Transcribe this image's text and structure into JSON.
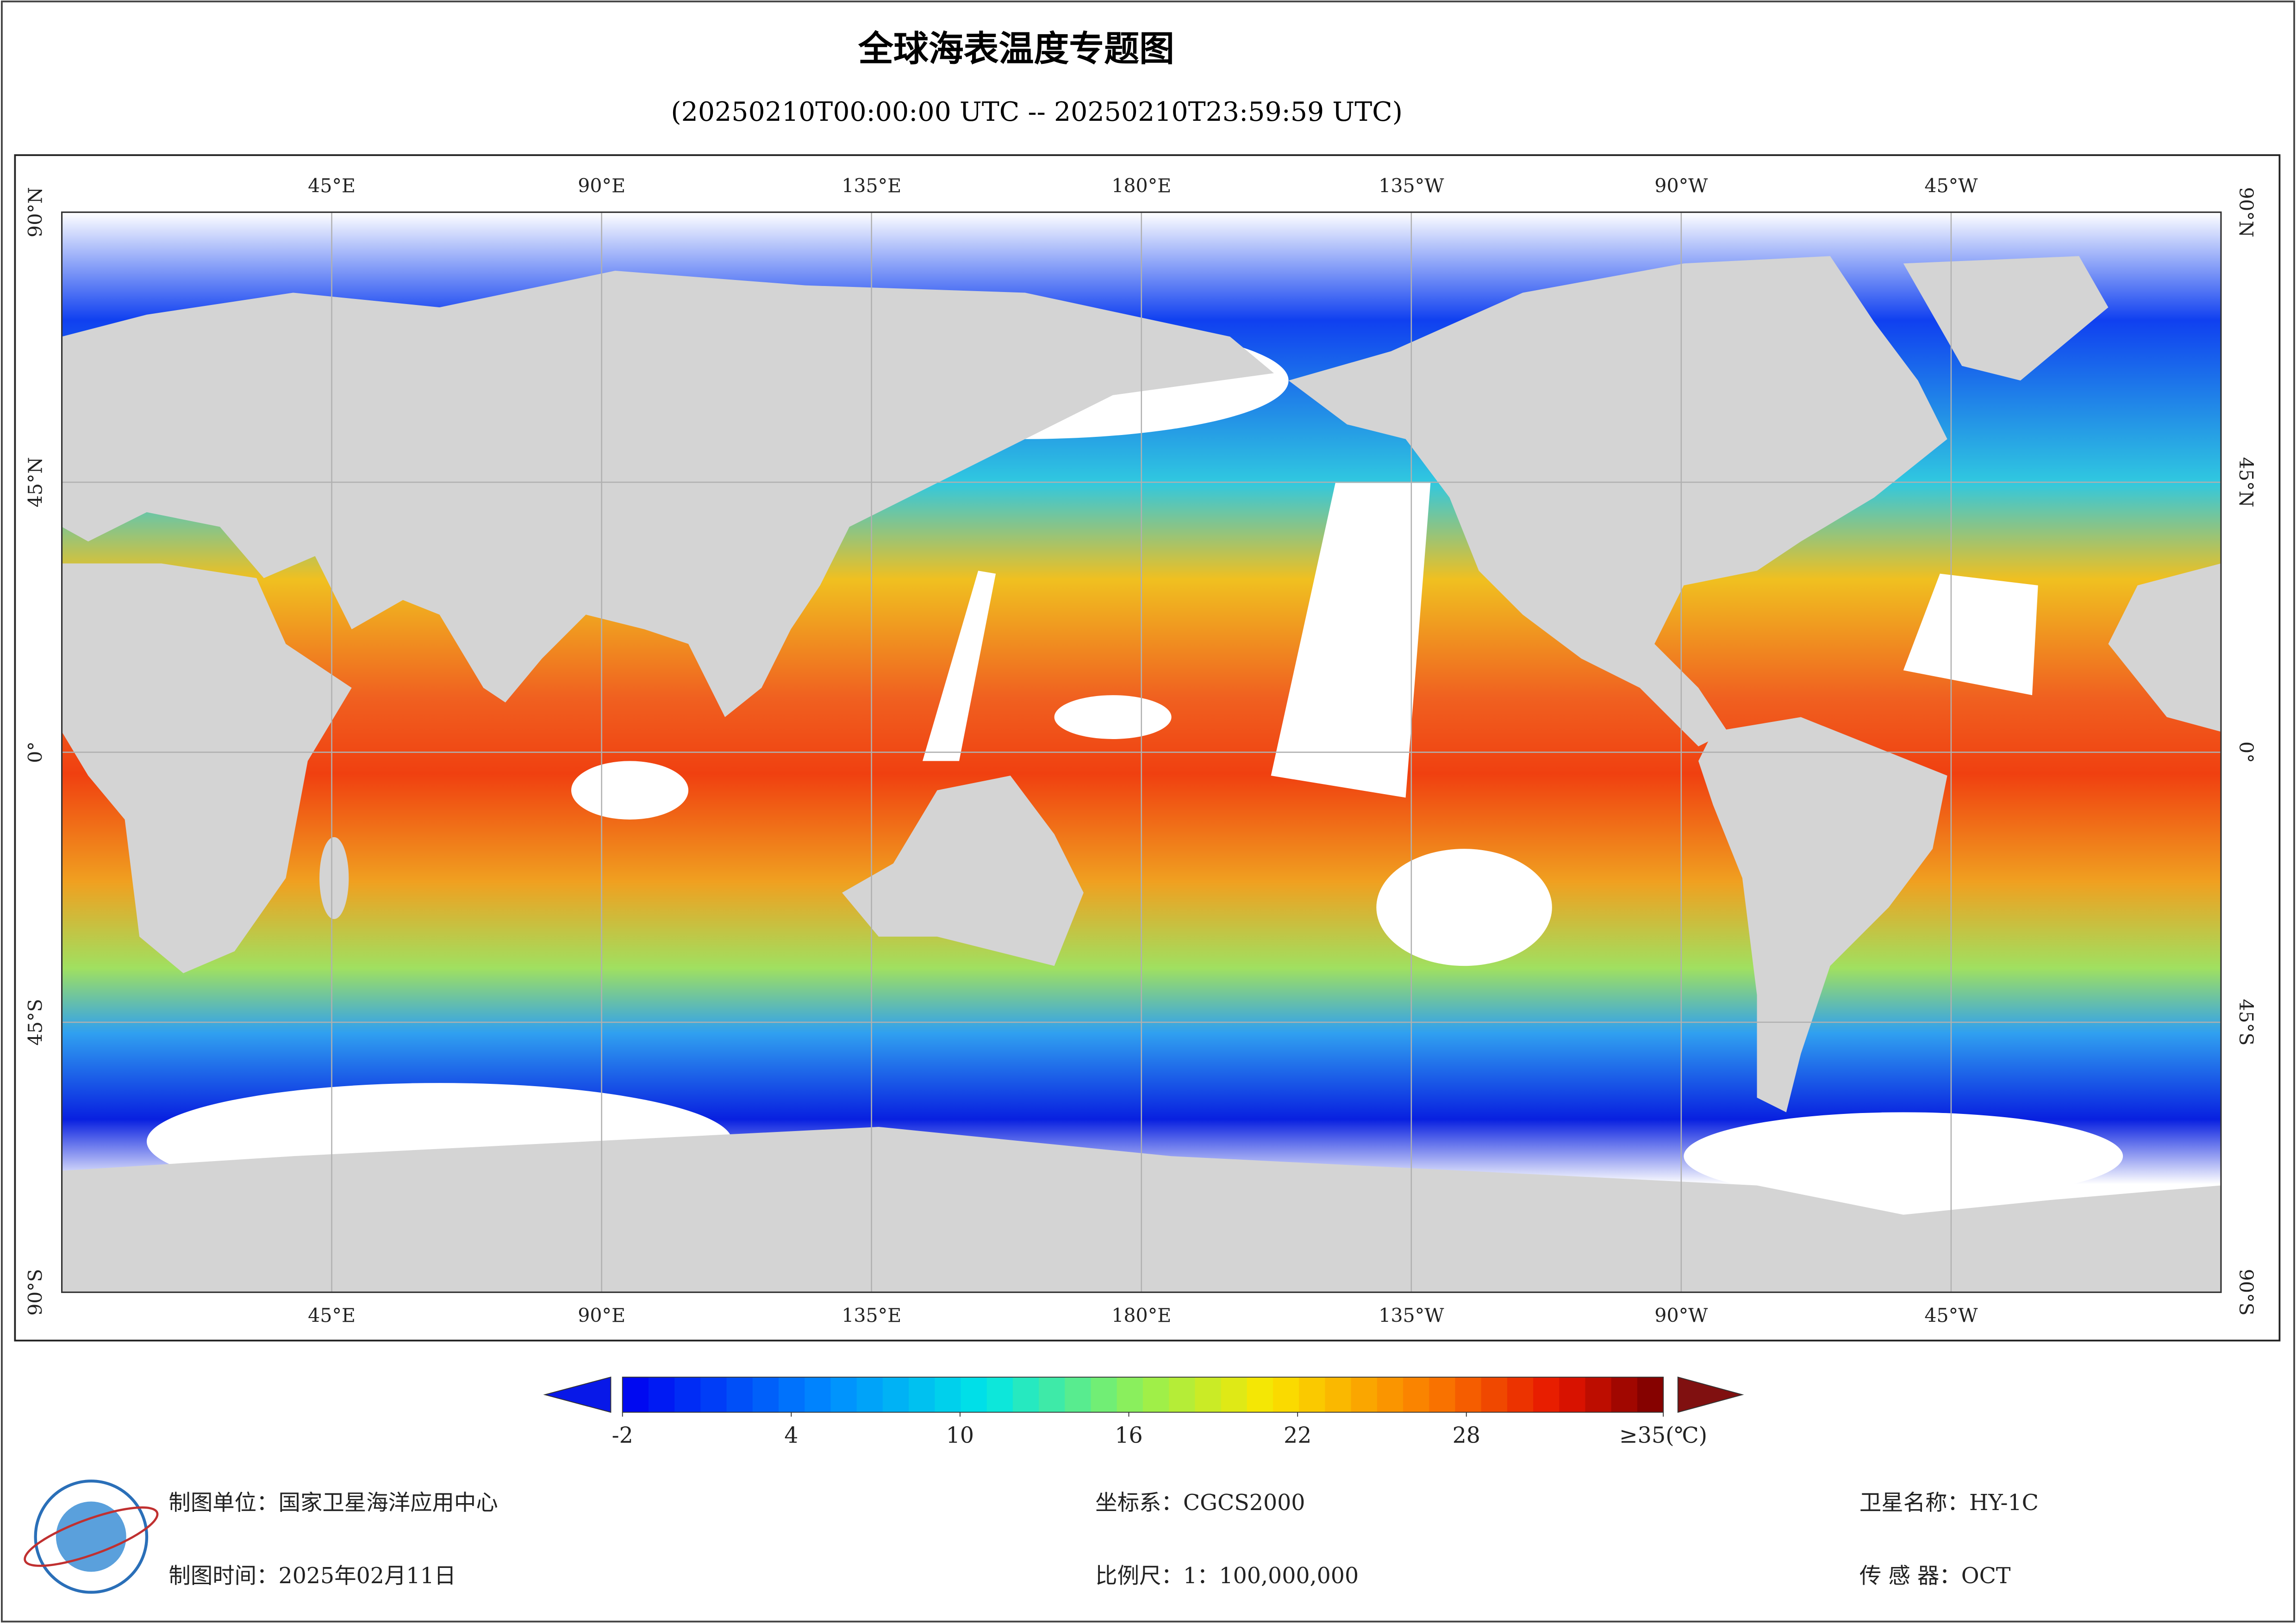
{
  "title": "全球海表温度专题图",
  "subtitle": "(20250210T00:00:00 UTC -- 20250210T23:59:59 UTC)",
  "map": {
    "longitude_labels": [
      "45°E",
      "90°E",
      "135°E",
      "180°E",
      "135°W",
      "90°W",
      "45°W"
    ],
    "latitude_labels": [
      "90°N",
      "45°N",
      "0°",
      "45°S",
      "90°S"
    ]
  },
  "colorbar": {
    "ticks": [
      -2,
      4,
      10,
      16,
      22,
      28,
      {
        "value": 35,
        "label": "≥35(℃)"
      }
    ]
  },
  "footer": {
    "unit": {
      "label": "制图单位：",
      "value": "国家卫星海洋应用中心"
    },
    "time": {
      "label": "制图时间：",
      "value": "2025年02月11日"
    },
    "crs": {
      "label": "坐标系：",
      "value": "CGCS2000"
    },
    "scale": {
      "label": "比例尺：",
      "value": "1：100,000,000"
    },
    "satellite": {
      "label": "卫星名称：",
      "value": "HY-1C"
    },
    "sensor": {
      "label": "传 感 器：",
      "value": "OCT"
    }
  }
}
